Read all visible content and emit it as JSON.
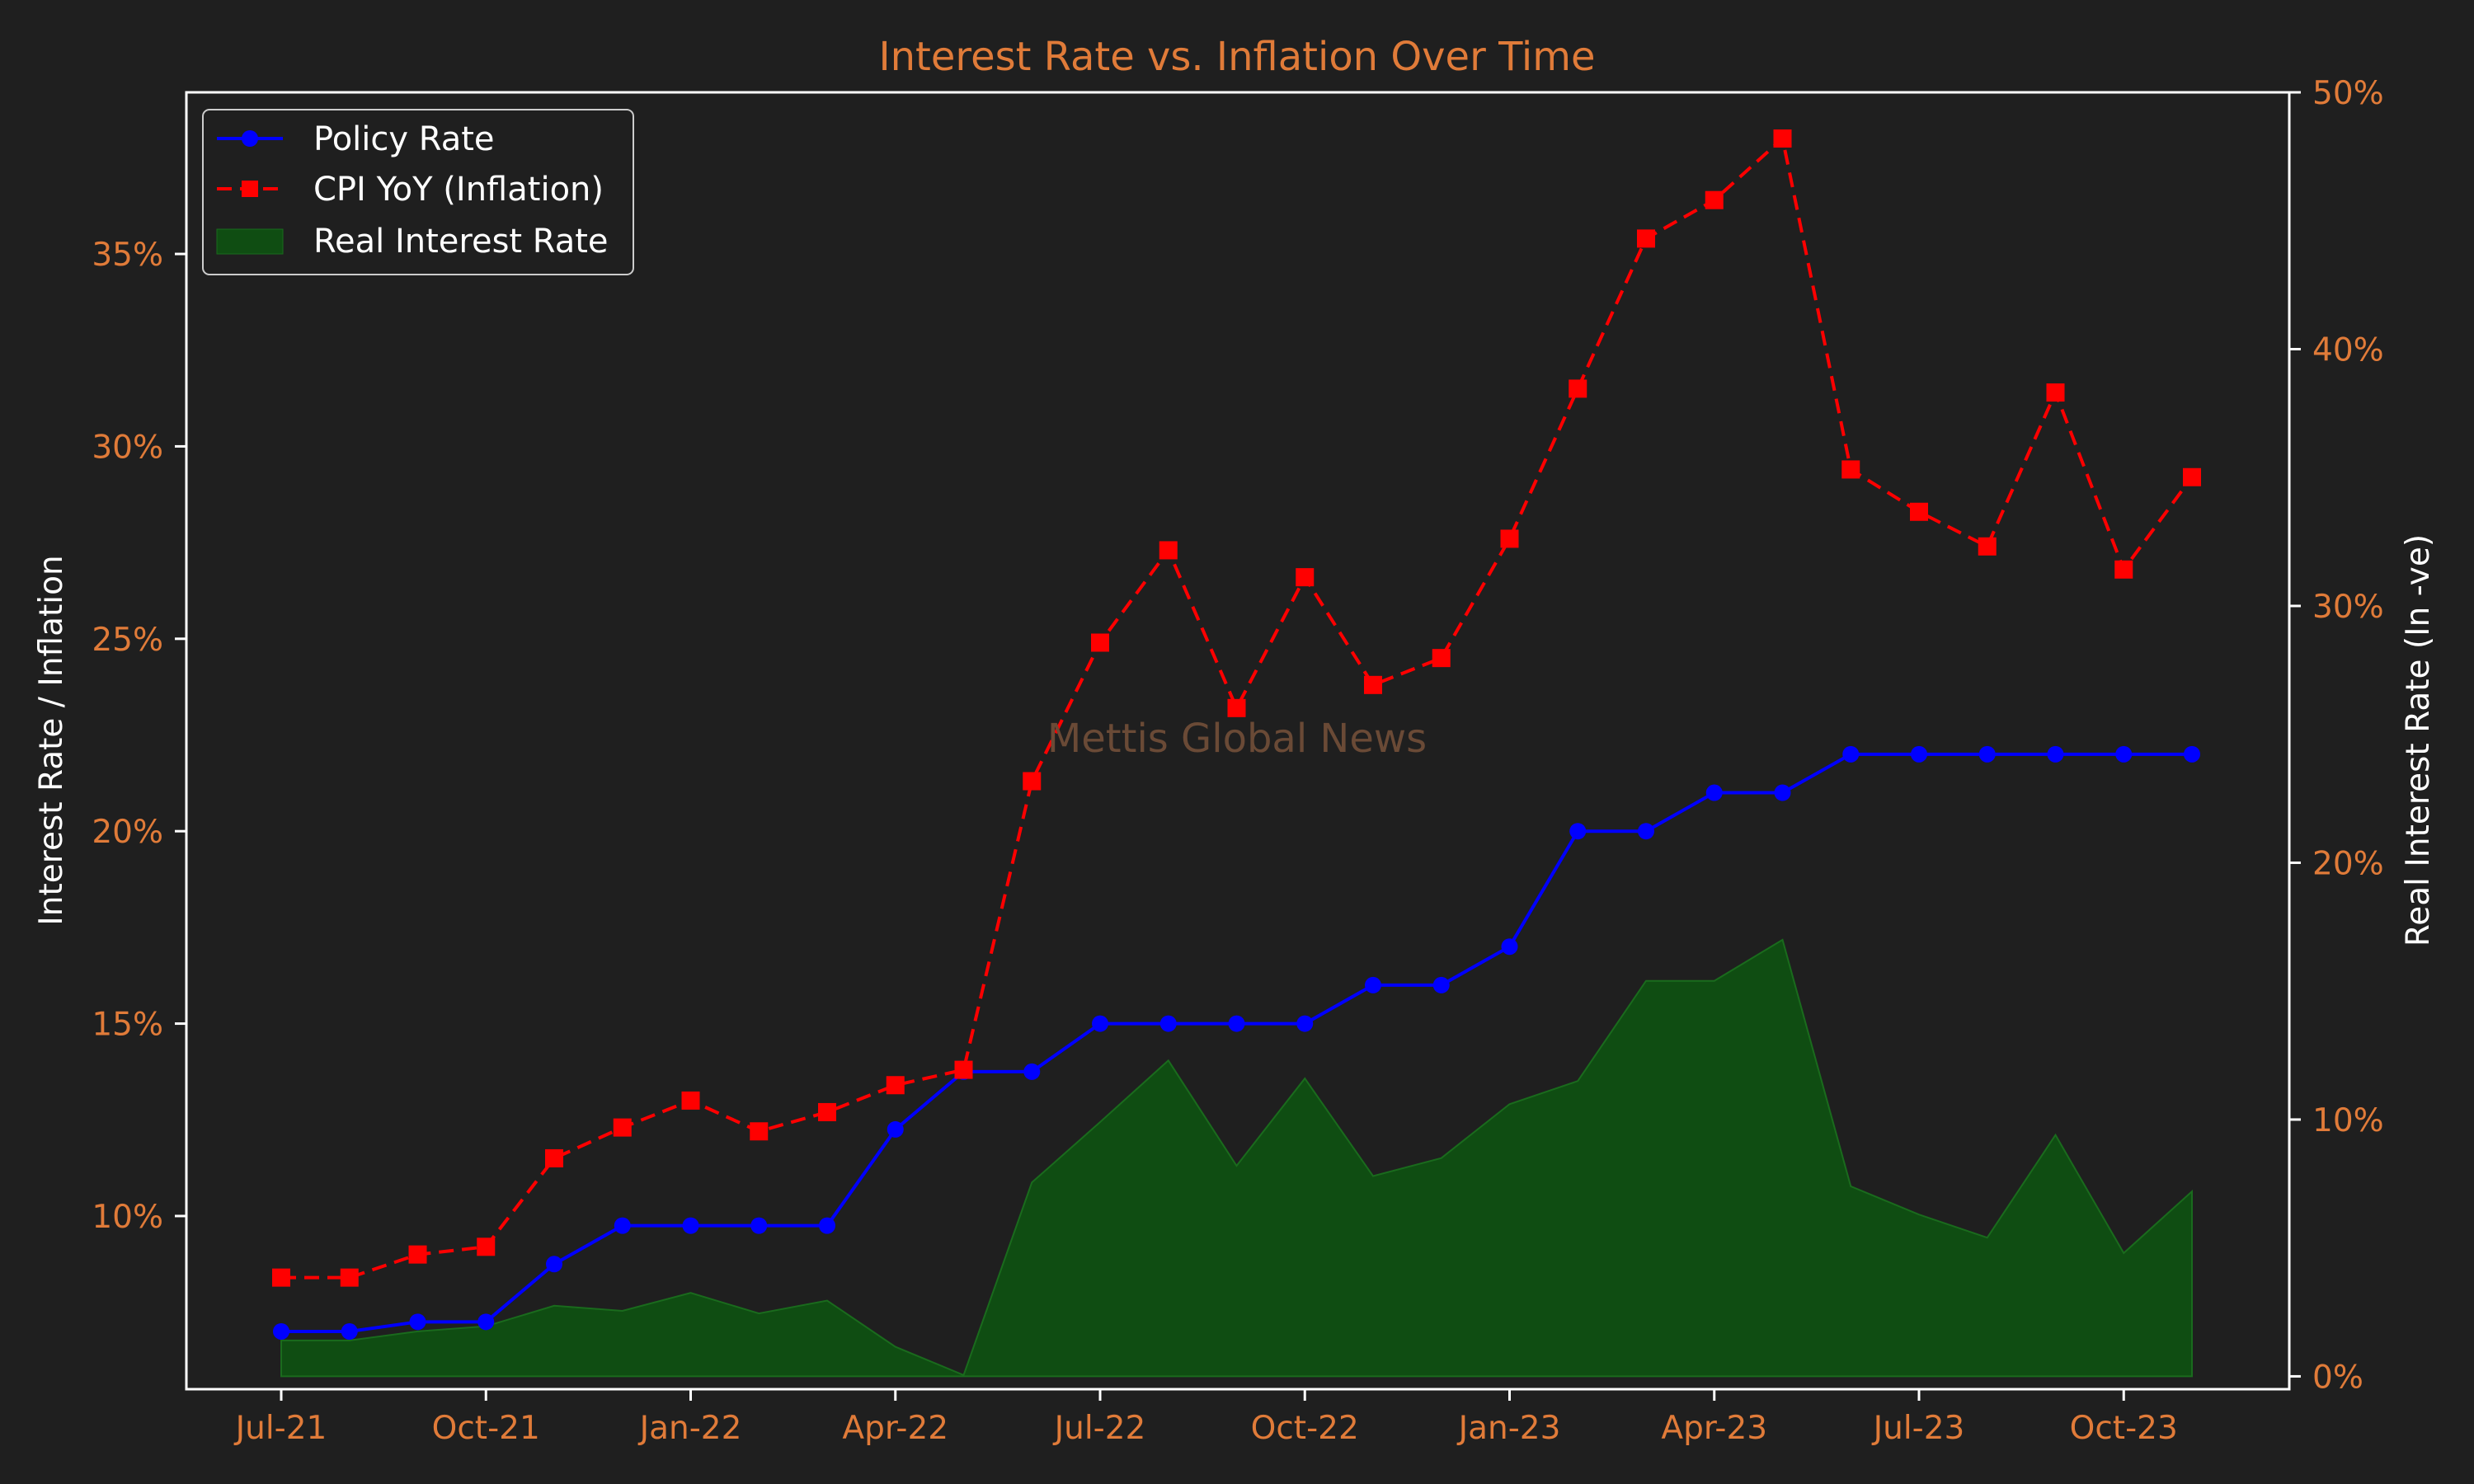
{
  "chart_data": {
    "type": "line",
    "title": "Interest Rate vs. Inflation Over Time",
    "ylabel": "Interest Rate / Inflation",
    "y2label": "Real Interest Rate (In -ve)",
    "watermark": "Mettis Global News",
    "x": [
      "2021-07",
      "2021-08",
      "2021-09",
      "2021-10",
      "2021-11",
      "2021-12",
      "2022-01",
      "2022-02",
      "2022-03",
      "2022-04",
      "2022-05",
      "2022-06",
      "2022-07",
      "2022-08",
      "2022-09",
      "2022-10",
      "2022-11",
      "2022-12",
      "2023-01",
      "2023-02",
      "2023-03",
      "2023-04",
      "2023-05",
      "2023-06",
      "2023-07",
      "2023-08",
      "2023-09",
      "2023-10",
      "2023-11"
    ],
    "x_ticks": [
      {
        "index": 0,
        "label": "Jul-21"
      },
      {
        "index": 3,
        "label": "Oct-21"
      },
      {
        "index": 6,
        "label": "Jan-22"
      },
      {
        "index": 9,
        "label": "Apr-22"
      },
      {
        "index": 12,
        "label": "Jul-22"
      },
      {
        "index": 15,
        "label": "Oct-22"
      },
      {
        "index": 18,
        "label": "Jan-23"
      },
      {
        "index": 21,
        "label": "Apr-23"
      },
      {
        "index": 24,
        "label": "Jul-23"
      },
      {
        "index": 27,
        "label": "Oct-23"
      }
    ],
    "ylim": [
      5.5,
      39.2
    ],
    "y_ticks": [
      {
        "value": 10,
        "label": "10%"
      },
      {
        "value": 15,
        "label": "15%"
      },
      {
        "value": 20,
        "label": "20%"
      },
      {
        "value": 25,
        "label": "25%"
      },
      {
        "value": 30,
        "label": "30%"
      },
      {
        "value": 35,
        "label": "35%"
      }
    ],
    "y2lim": [
      -0.5,
      50
    ],
    "y2_ticks": [
      {
        "value": 0,
        "label": "0%"
      },
      {
        "value": 10,
        "label": "10%"
      },
      {
        "value": 20,
        "label": "20%"
      },
      {
        "value": 30,
        "label": "30%"
      },
      {
        "value": 40,
        "label": "40%"
      },
      {
        "value": 50,
        "label": "50%"
      }
    ],
    "series": [
      {
        "name": "Policy Rate",
        "style": "solid-circle",
        "color": "#0000ff",
        "values": [
          7,
          7,
          7.25,
          7.25,
          8.75,
          9.75,
          9.75,
          9.75,
          9.75,
          12.25,
          13.75,
          13.75,
          15,
          15,
          15,
          15,
          16,
          16,
          17,
          20,
          20,
          21,
          21,
          22,
          22,
          22,
          22,
          22,
          22
        ]
      },
      {
        "name": "CPI YoY (Inflation)",
        "style": "dashed-square",
        "color": "#ff0000",
        "values": [
          8.4,
          8.4,
          9.0,
          9.2,
          11.5,
          12.3,
          13.0,
          12.2,
          12.7,
          13.4,
          13.8,
          21.3,
          24.9,
          27.3,
          23.2,
          26.6,
          23.8,
          24.5,
          27.6,
          31.5,
          35.4,
          36.4,
          38.0,
          29.4,
          28.3,
          27.4,
          31.4,
          26.8,
          29.2
        ]
      },
      {
        "name": "Real Interest Rate",
        "style": "area",
        "color": "#0f4d12",
        "axis": "right",
        "values": [
          1.4,
          1.4,
          1.75,
          1.95,
          2.75,
          2.55,
          3.25,
          2.45,
          2.95,
          1.15,
          0.05,
          7.55,
          9.9,
          12.3,
          8.2,
          11.6,
          7.8,
          8.5,
          10.6,
          11.5,
          15.4,
          15.4,
          17.0,
          7.4,
          6.3,
          5.4,
          9.4,
          4.8,
          7.2
        ]
      }
    ],
    "legend_position": "top-left",
    "colors": {
      "background": "#1f1f1f",
      "axes": "#ffffff",
      "tick_text": "#e07b39",
      "title": "#e07b39"
    }
  }
}
